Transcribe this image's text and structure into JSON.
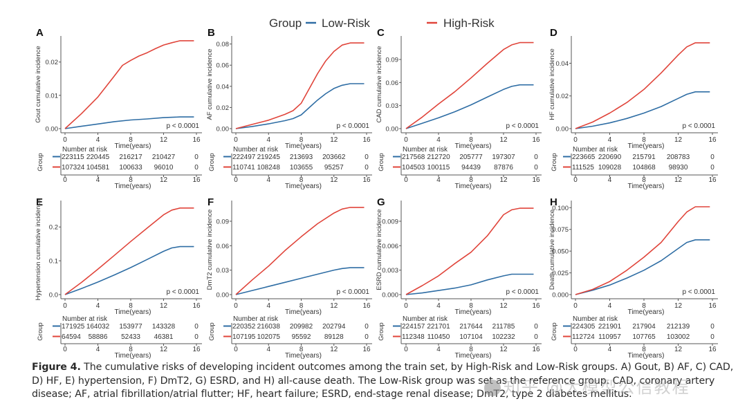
{
  "legend": {
    "title": "Group",
    "items": [
      {
        "label": "Low-Risk",
        "color": "#2E6DA4"
      },
      {
        "label": "High-Risk",
        "color": "#E0443A"
      }
    ]
  },
  "chart_data": [
    {
      "type": "line",
      "panel": "A",
      "ylabel": "Gout cumulative incidence",
      "xlabel": "Time(years)",
      "xlim": [
        0,
        16
      ],
      "xticks": [
        0,
        4,
        8,
        12,
        16
      ],
      "ylim": [
        0,
        0.027
      ],
      "yticks": [
        "0.00",
        "0.01",
        "0.02"
      ],
      "ytick_values": [
        0,
        0.01,
        0.02
      ],
      "pvalue": "p < 0.0001",
      "series": [
        {
          "name": "Low-Risk",
          "x": [
            0,
            2,
            4,
            6,
            8,
            10,
            12,
            14,
            15.7
          ],
          "y": [
            0,
            0.0007,
            0.0014,
            0.0021,
            0.0026,
            0.0029,
            0.0033,
            0.0035,
            0.0035
          ]
        },
        {
          "name": "High-Risk",
          "x": [
            0,
            2,
            4,
            6,
            7,
            8,
            9,
            10,
            11,
            12,
            13,
            14,
            15.7
          ],
          "y": [
            0,
            0.0045,
            0.0095,
            0.0158,
            0.019,
            0.0205,
            0.0218,
            0.0228,
            0.024,
            0.0251,
            0.0258,
            0.0264,
            0.0264
          ]
        }
      ],
      "risk_table": {
        "title": "Number at risk",
        "group_label": "Group",
        "times": [
          0,
          4,
          8,
          12,
          16
        ],
        "rows": [
          {
            "name": "Low-Risk",
            "values": [
              "223115",
              "220445",
              "216217",
              "210427",
              "0"
            ]
          },
          {
            "name": "High-Risk",
            "values": [
              "107324",
              "104581",
              "100633",
              "96010",
              "0"
            ]
          }
        ]
      }
    },
    {
      "type": "line",
      "panel": "B",
      "ylabel": "AF cumulative incidence",
      "xlabel": "Time(years)",
      "xlim": [
        0,
        16
      ],
      "xticks": [
        0,
        4,
        8,
        12,
        16
      ],
      "ylim": [
        0,
        0.085
      ],
      "yticks": [
        "0.00",
        "0.02",
        "0.04",
        "0.06",
        "0.08"
      ],
      "ytick_values": [
        0,
        0.02,
        0.04,
        0.06,
        0.08
      ],
      "pvalue": "p < 0.0001",
      "series": [
        {
          "name": "Low-Risk",
          "x": [
            0,
            2,
            4,
            6,
            7,
            8,
            9,
            10,
            11,
            12,
            13,
            14,
            15.7
          ],
          "y": [
            0,
            0.002,
            0.0045,
            0.0075,
            0.0095,
            0.013,
            0.02,
            0.027,
            0.033,
            0.038,
            0.041,
            0.0425,
            0.0425
          ]
        },
        {
          "name": "High-Risk",
          "x": [
            0,
            2,
            4,
            6,
            7,
            8,
            9,
            10,
            11,
            12,
            13,
            14,
            15.7
          ],
          "y": [
            0,
            0.004,
            0.008,
            0.0135,
            0.017,
            0.024,
            0.038,
            0.052,
            0.064,
            0.073,
            0.079,
            0.081,
            0.081
          ]
        }
      ],
      "risk_table": {
        "title": "Number at risk",
        "group_label": "Group",
        "times": [
          0,
          4,
          8,
          12,
          16
        ],
        "rows": [
          {
            "name": "Low-Risk",
            "values": [
              "222497",
              "219245",
              "213693",
              "203662",
              "0"
            ]
          },
          {
            "name": "High-Risk",
            "values": [
              "110741",
              "108248",
              "103655",
              "95257",
              "0"
            ]
          }
        ]
      }
    },
    {
      "type": "line",
      "panel": "C",
      "ylabel": "CAD cumulative incidence",
      "xlabel": "Time(years)",
      "xlim": [
        0,
        16
      ],
      "xticks": [
        0,
        4,
        8,
        12,
        16
      ],
      "ylim": [
        0,
        0.117
      ],
      "yticks": [
        "0.00",
        "0.03",
        "0.06",
        "0.09"
      ],
      "ytick_values": [
        0,
        0.03,
        0.06,
        0.09
      ],
      "pvalue": "p < 0.0001",
      "series": [
        {
          "name": "Low-Risk",
          "x": [
            0,
            2,
            4,
            6,
            8,
            10,
            12,
            13,
            14,
            15.7
          ],
          "y": [
            0,
            0.007,
            0.014,
            0.022,
            0.031,
            0.041,
            0.051,
            0.055,
            0.057,
            0.057
          ]
        },
        {
          "name": "High-Risk",
          "x": [
            0,
            2,
            4,
            6,
            8,
            10,
            12,
            13,
            14,
            15.7
          ],
          "y": [
            0,
            0.015,
            0.032,
            0.048,
            0.066,
            0.085,
            0.103,
            0.109,
            0.112,
            0.112
          ]
        }
      ],
      "risk_table": {
        "title": "Number at risk",
        "group_label": "Group",
        "times": [
          0,
          4,
          8,
          12,
          16
        ],
        "rows": [
          {
            "name": "Low-Risk",
            "values": [
              "217568",
              "212720",
              "205777",
              "197307",
              "0"
            ]
          },
          {
            "name": "High-Risk",
            "values": [
              "104503",
              "100115",
              "94439",
              "87876",
              "0"
            ]
          }
        ]
      }
    },
    {
      "type": "line",
      "panel": "D",
      "ylabel": "HF cumulative incidence",
      "xlabel": "Time(years)",
      "xlim": [
        0,
        16
      ],
      "xticks": [
        0,
        4,
        8,
        12,
        16
      ],
      "ylim": [
        0,
        0.055
      ],
      "yticks": [
        "0.00",
        "0.02",
        "0.04"
      ],
      "ytick_values": [
        0,
        0.02,
        0.04
      ],
      "pvalue": "p < 0.0001",
      "series": [
        {
          "name": "Low-Risk",
          "x": [
            0,
            2,
            4,
            6,
            8,
            10,
            12,
            13,
            14,
            15.7
          ],
          "y": [
            0,
            0.0015,
            0.0035,
            0.0062,
            0.0095,
            0.0135,
            0.0185,
            0.021,
            0.0225,
            0.0225
          ]
        },
        {
          "name": "High-Risk",
          "x": [
            0,
            2,
            4,
            6,
            8,
            10,
            12,
            13,
            14,
            15.7
          ],
          "y": [
            0,
            0.004,
            0.0095,
            0.016,
            0.024,
            0.034,
            0.045,
            0.05,
            0.0525,
            0.0525
          ]
        }
      ],
      "risk_table": {
        "title": "Number at risk",
        "group_label": "Group",
        "times": [
          0,
          4,
          8,
          12,
          16
        ],
        "rows": [
          {
            "name": "Low-Risk",
            "values": [
              "223665",
              "220690",
              "215791",
              "208783",
              "0"
            ]
          },
          {
            "name": "High-Risk",
            "values": [
              "111525",
              "109028",
              "104868",
              "98930",
              "0"
            ]
          }
        ]
      }
    },
    {
      "type": "line",
      "panel": "E",
      "ylabel": "Hypertension cumulative incidence",
      "xlabel": "Time(years)",
      "xlim": [
        0,
        16
      ],
      "xticks": [
        0,
        4,
        8,
        12,
        16
      ],
      "ylim": [
        0,
        0.27
      ],
      "yticks": [
        "0.0",
        "0.1",
        "0.2"
      ],
      "ytick_values": [
        0,
        0.1,
        0.2
      ],
      "pvalue": "p < 0.0001",
      "series": [
        {
          "name": "Low-Risk",
          "x": [
            0,
            2,
            4,
            6,
            8,
            10,
            12,
            13,
            14,
            15.7
          ],
          "y": [
            0,
            0.018,
            0.037,
            0.058,
            0.08,
            0.104,
            0.128,
            0.138,
            0.142,
            0.142
          ]
        },
        {
          "name": "High-Risk",
          "x": [
            0,
            2,
            4,
            6,
            8,
            10,
            12,
            13,
            14,
            15.7
          ],
          "y": [
            0,
            0.036,
            0.075,
            0.116,
            0.157,
            0.197,
            0.236,
            0.25,
            0.256,
            0.256
          ]
        }
      ],
      "risk_table": {
        "title": "Number at risk",
        "group_label": "Group",
        "times": [
          0,
          4,
          8,
          12,
          16
        ],
        "rows": [
          {
            "name": "Low-Risk",
            "values": [
              "171925",
              "164032",
              "153977",
              "143328",
              "0"
            ]
          },
          {
            "name": "High-Risk",
            "values": [
              "64594",
              "58886",
              "52433",
              "46381",
              "0"
            ]
          }
        ]
      }
    },
    {
      "type": "line",
      "panel": "F",
      "ylabel": "DmT2 cumulative incidence",
      "xlabel": "Time(years)",
      "xlim": [
        0,
        16
      ],
      "xticks": [
        0,
        4,
        8,
        12,
        16
      ],
      "ylim": [
        0,
        0.112
      ],
      "yticks": [
        "0.00",
        "0.03",
        "0.06",
        "0.09"
      ],
      "ytick_values": [
        0,
        0.03,
        0.06,
        0.09
      ],
      "pvalue": "p < 0.0001",
      "series": [
        {
          "name": "Low-Risk",
          "x": [
            0,
            2,
            4,
            6,
            8,
            10,
            12,
            13,
            14,
            15.7
          ],
          "y": [
            0,
            0.005,
            0.01,
            0.015,
            0.02,
            0.025,
            0.03,
            0.032,
            0.033,
            0.033
          ]
        },
        {
          "name": "High-Risk",
          "x": [
            0,
            2,
            4,
            6,
            8,
            10,
            12,
            13,
            14,
            15.7
          ],
          "y": [
            0,
            0.018,
            0.035,
            0.054,
            0.071,
            0.087,
            0.1,
            0.105,
            0.107,
            0.107
          ]
        }
      ],
      "risk_table": {
        "title": "Number at risk",
        "group_label": "Group",
        "times": [
          0,
          4,
          8,
          12,
          16
        ],
        "rows": [
          {
            "name": "Low-Risk",
            "values": [
              "220352",
              "216038",
              "209982",
              "202794",
              "0"
            ]
          },
          {
            "name": "High-Risk",
            "values": [
              "107195",
              "102075",
              "95592",
              "89128",
              "0"
            ]
          }
        ]
      }
    },
    {
      "type": "line",
      "panel": "G",
      "ylabel": "ESRD cumulative incidence",
      "xlabel": "Time(years)",
      "xlim": [
        0,
        16
      ],
      "xticks": [
        0,
        4,
        8,
        12,
        16
      ],
      "ylim": [
        0,
        0.0112
      ],
      "yticks": [
        "0.000",
        "0.003",
        "0.006",
        "0.009"
      ],
      "ytick_values": [
        0,
        0.003,
        0.006,
        0.009
      ],
      "pvalue": "p < 0.0001",
      "series": [
        {
          "name": "Low-Risk",
          "x": [
            0,
            2,
            4,
            6,
            8,
            10,
            12,
            13,
            14,
            15.7
          ],
          "y": [
            0,
            0.0002,
            0.0005,
            0.0008,
            0.0012,
            0.0018,
            0.0023,
            0.0025,
            0.0025,
            0.0025
          ]
        },
        {
          "name": "High-Risk",
          "x": [
            0,
            2,
            4,
            6,
            8,
            10,
            12,
            13,
            14,
            15.7
          ],
          "y": [
            0,
            0.0011,
            0.0023,
            0.0038,
            0.0052,
            0.0072,
            0.0098,
            0.0104,
            0.0106,
            0.0106
          ]
        }
      ],
      "risk_table": {
        "title": "Number at risk",
        "group_label": "Group",
        "times": [
          0,
          4,
          8,
          12,
          16
        ],
        "rows": [
          {
            "name": "Low-Risk",
            "values": [
              "224157",
              "221701",
              "217644",
              "211785",
              "0"
            ]
          },
          {
            "name": "High-Risk",
            "values": [
              "112348",
              "110450",
              "107104",
              "102232",
              "0"
            ]
          }
        ]
      }
    },
    {
      "type": "line",
      "panel": "H",
      "ylabel": "Death cumulative incidence",
      "xlabel": "Time(years)",
      "xlim": [
        0,
        16
      ],
      "xticks": [
        0,
        4,
        8,
        12,
        16
      ],
      "ylim": [
        0,
        0.105
      ],
      "yticks": [
        "0.000",
        "0.025",
        "0.050",
        "0.075",
        "0.100"
      ],
      "ytick_values": [
        0,
        0.025,
        0.05,
        0.075,
        0.1
      ],
      "pvalue": "p < 0.0001",
      "series": [
        {
          "name": "Low-Risk",
          "x": [
            0,
            2,
            4,
            6,
            8,
            10,
            12,
            13,
            14,
            15.7
          ],
          "y": [
            0,
            0.005,
            0.011,
            0.019,
            0.028,
            0.039,
            0.053,
            0.06,
            0.063,
            0.063
          ]
        },
        {
          "name": "High-Risk",
          "x": [
            0,
            2,
            4,
            6,
            8,
            10,
            12,
            13,
            14,
            15.7
          ],
          "y": [
            0,
            0.006,
            0.015,
            0.028,
            0.043,
            0.06,
            0.084,
            0.095,
            0.101,
            0.101
          ]
        }
      ],
      "risk_table": {
        "title": "Number at risk",
        "group_label": "Group",
        "times": [
          0,
          4,
          8,
          12,
          16
        ],
        "rows": [
          {
            "name": "Low-Risk",
            "values": [
              "224305",
              "221901",
              "217904",
              "212139",
              "0"
            ]
          },
          {
            "name": "High-Risk",
            "values": [
              "112724",
              "110957",
              "107765",
              "103002",
              "0"
            ]
          }
        ]
      }
    }
  ],
  "caption": {
    "label": "Figure 4.",
    "text": " The cumulative risks of developing incident outcomes among the train set, by High-Risk and Low-Risk groups. A) Gout, B) AF, C) CAD, D) HF, E) hypertension, F) DmT2, G) ESRD, and H) all-cause death. The Low-Risk group was set as the reference group. CAD, coronary artery disease; AF, atrial fibrillation/atrial flutter; HF, heart failure; ESRD, end-stage renal disease; DmT2, type 2 diabetes mellitus."
  },
  "watermark": "知乎 @大模型公信教程"
}
